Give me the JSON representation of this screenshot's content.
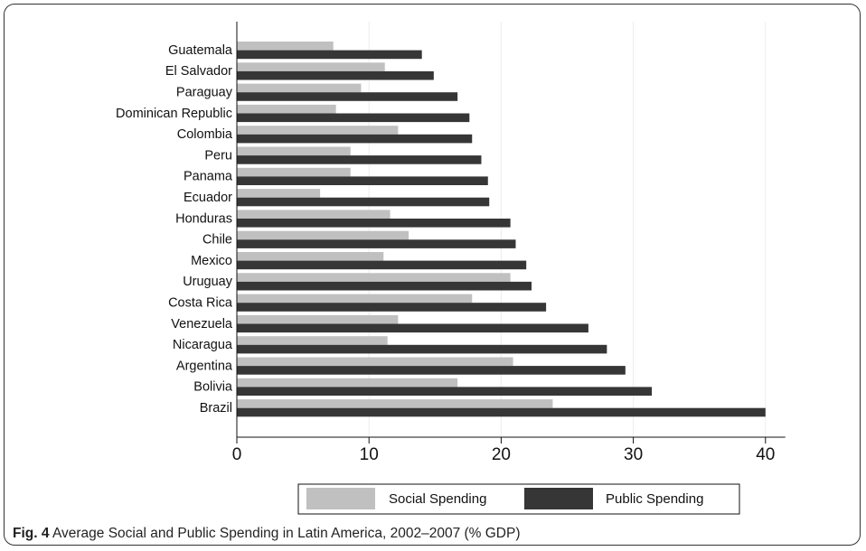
{
  "figure": {
    "caption_label": "Fig. 4",
    "caption_text": "Average Social and Public Spending in Latin America, 2002–2007 (% GDP)"
  },
  "chart_data": {
    "type": "bar",
    "orientation": "horizontal",
    "categories": [
      "Guatemala",
      "El Salvador",
      "Paraguay",
      "Dominican Republic",
      "Colombia",
      "Peru",
      "Panama",
      "Ecuador",
      "Honduras",
      "Chile",
      "Mexico",
      "Uruguay",
      "Costa Rica",
      "Venezuela",
      "Nicaragua",
      "Argentina",
      "Bolivia",
      "Brazil"
    ],
    "series": [
      {
        "name": "Social Spending",
        "color": "#c0c0c0",
        "values": [
          7.3,
          11.2,
          9.4,
          7.5,
          12.2,
          8.6,
          8.6,
          6.3,
          11.6,
          13.0,
          11.1,
          20.7,
          17.8,
          12.2,
          11.4,
          20.9,
          16.7,
          23.9
        ]
      },
      {
        "name": "Public Spending",
        "color": "#363636",
        "values": [
          14.0,
          14.9,
          16.7,
          17.6,
          17.8,
          18.5,
          19.0,
          19.1,
          20.7,
          21.1,
          21.9,
          22.3,
          23.4,
          26.6,
          28.0,
          29.4,
          31.4,
          40.0
        ]
      }
    ],
    "xlim": [
      0,
      41.5
    ],
    "xticks": [
      "0",
      "10",
      "20",
      "30",
      "40"
    ],
    "grid": true,
    "legend_position": "bottom"
  }
}
